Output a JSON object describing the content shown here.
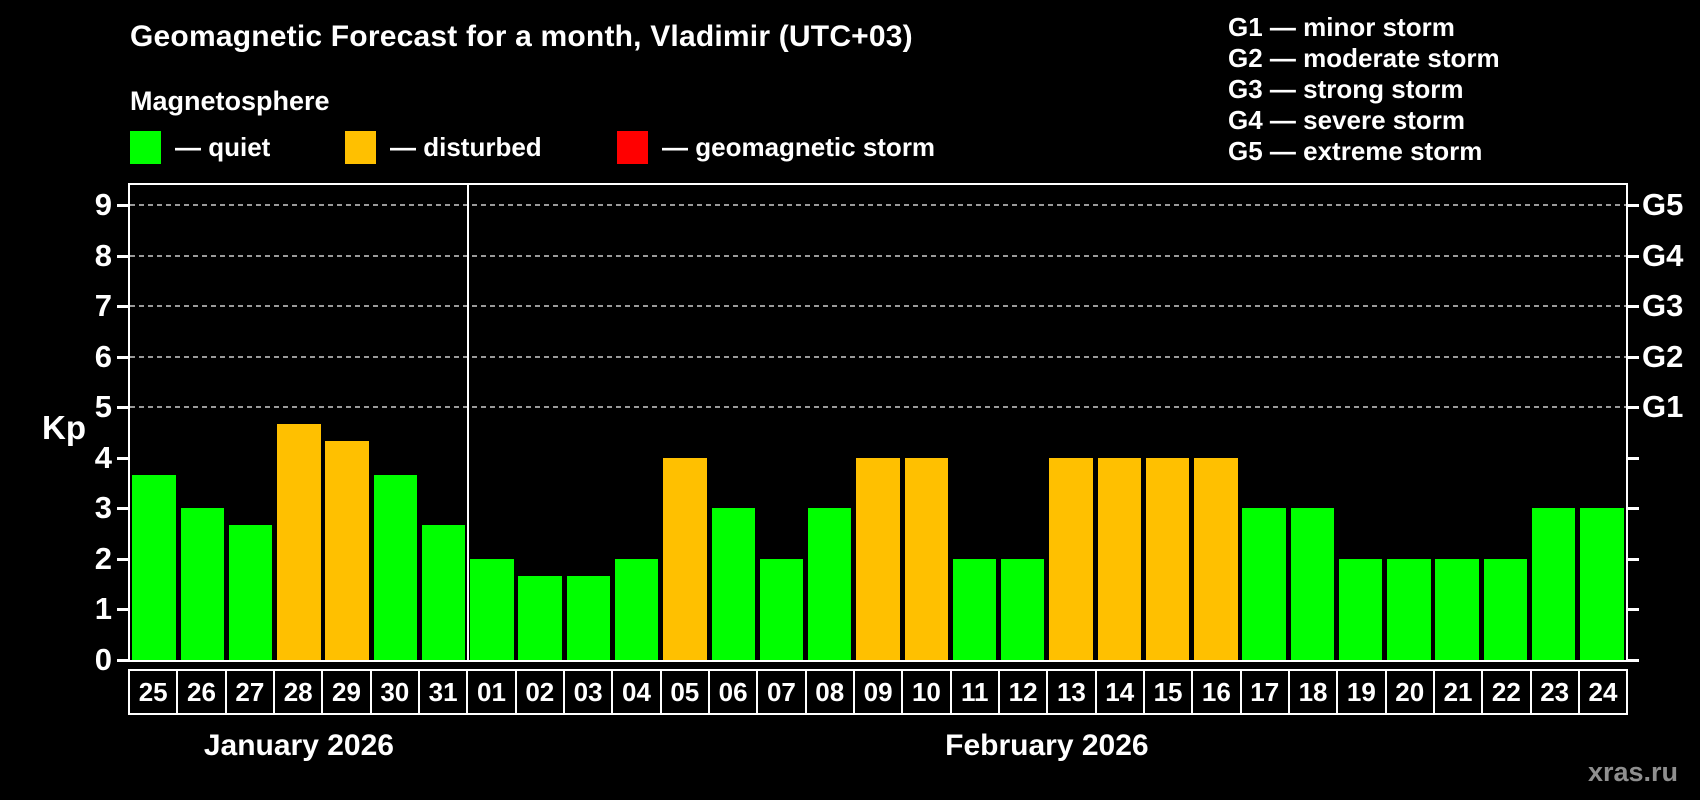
{
  "watermark": "xras.ru",
  "colors": {
    "quiet": "#00ff00",
    "disturbed": "#ffc000",
    "storm": "#ff0000",
    "axis": "#ffffff",
    "grid": "#9a9a9a",
    "background": "#000000"
  },
  "chart_data": {
    "type": "bar",
    "title": "Geomagnetic Forecast for a month, Vladimir (UTC+03)",
    "subtitle": "Magnetosphere",
    "ylabel": "Kp",
    "ylim": [
      0,
      9.4
    ],
    "yticks": [
      0,
      1,
      2,
      3,
      4,
      5,
      6,
      7,
      8,
      9
    ],
    "gridlines": [
      5,
      6,
      7,
      8,
      9
    ],
    "grid_style": "dashed",
    "legend_position": "top",
    "legend": [
      {
        "status": "quiet",
        "label": "— quiet"
      },
      {
        "status": "disturbed",
        "label": "— disturbed"
      },
      {
        "status": "storm",
        "label": "— geomagnetic storm"
      }
    ],
    "storm_scale_legend": [
      "G1 — minor storm",
      "G2 — moderate storm",
      "G3 — strong storm",
      "G4 — severe storm",
      "G5 — extreme storm"
    ],
    "right_axis": [
      {
        "kp": 5,
        "label": "G1"
      },
      {
        "kp": 6,
        "label": "G2"
      },
      {
        "kp": 7,
        "label": "G3"
      },
      {
        "kp": 8,
        "label": "G4"
      },
      {
        "kp": 9,
        "label": "G5"
      }
    ],
    "categories": [
      "25",
      "26",
      "27",
      "28",
      "29",
      "30",
      "31",
      "01",
      "02",
      "03",
      "04",
      "05",
      "06",
      "07",
      "08",
      "09",
      "10",
      "11",
      "12",
      "13",
      "14",
      "15",
      "16",
      "17",
      "18",
      "19",
      "20",
      "21",
      "22",
      "23",
      "24"
    ],
    "values": [
      3.67,
      3.0,
      2.67,
      4.67,
      4.33,
      3.67,
      2.67,
      2.0,
      1.67,
      1.67,
      2.0,
      4.0,
      3.0,
      2.0,
      3.0,
      4.0,
      4.0,
      2.0,
      2.0,
      4.0,
      4.0,
      4.0,
      4.0,
      3.0,
      3.0,
      2.0,
      2.0,
      2.0,
      2.0,
      3.0,
      3.0
    ],
    "statuses": [
      "quiet",
      "quiet",
      "quiet",
      "disturbed",
      "disturbed",
      "quiet",
      "quiet",
      "quiet",
      "quiet",
      "quiet",
      "quiet",
      "disturbed",
      "quiet",
      "quiet",
      "quiet",
      "disturbed",
      "disturbed",
      "quiet",
      "quiet",
      "disturbed",
      "disturbed",
      "disturbed",
      "disturbed",
      "quiet",
      "quiet",
      "quiet",
      "quiet",
      "quiet",
      "quiet",
      "quiet",
      "quiet"
    ],
    "groups": [
      {
        "label": "January 2026",
        "start": 0,
        "count": 7
      },
      {
        "label": "February 2026",
        "start": 7,
        "count": 24
      }
    ]
  }
}
